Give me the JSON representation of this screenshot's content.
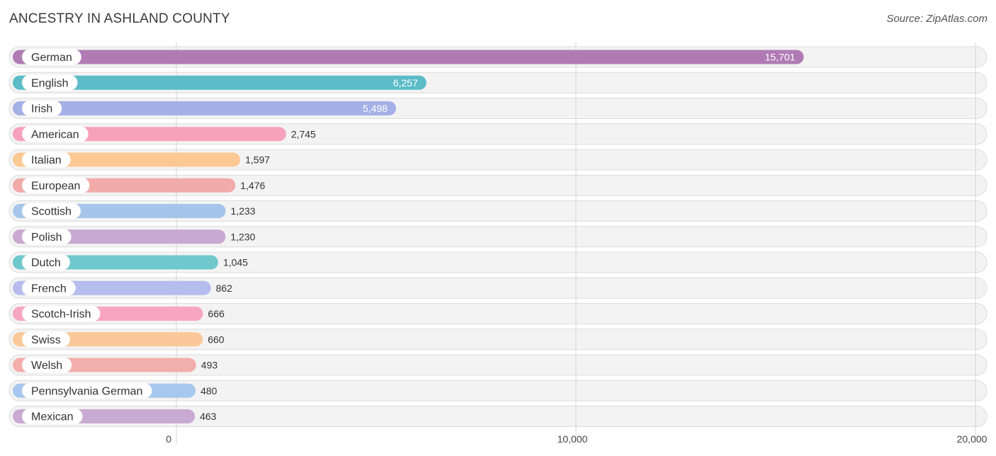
{
  "header": {
    "title": "ANCESTRY IN ASHLAND COUNTY",
    "source": "Source: ZipAtlas.com"
  },
  "chart_data": {
    "type": "bar",
    "orientation": "horizontal",
    "title": "ANCESTRY IN ASHLAND COUNTY",
    "categories": [
      "German",
      "English",
      "Irish",
      "American",
      "Italian",
      "European",
      "Scottish",
      "Polish",
      "Dutch",
      "French",
      "Scotch-Irish",
      "Swiss",
      "Welsh",
      "Pennsylvania German",
      "Mexican"
    ],
    "values": [
      15701,
      6257,
      5498,
      2745,
      1597,
      1476,
      1233,
      1230,
      1045,
      862,
      666,
      660,
      493,
      480,
      463
    ],
    "value_labels": [
      "15,701",
      "6,257",
      "5,498",
      "2,745",
      "1,597",
      "1,476",
      "1,233",
      "1,230",
      "1,045",
      "862",
      "666",
      "660",
      "493",
      "480",
      "463"
    ],
    "colors": [
      "#b07bb5",
      "#5bbcc8",
      "#a5b0e6",
      "#f7a1bd",
      "#fcc994",
      "#f1aba9",
      "#a5c6ea",
      "#c9a9d1",
      "#6fc8cc",
      "#b6bced",
      "#f7a6c2",
      "#fcc89a",
      "#f2aeab",
      "#a8c7ee",
      "#c9aad3"
    ],
    "xlim": [
      0,
      20000
    ],
    "xticks": [
      0,
      10000,
      20000
    ],
    "xtick_labels": [
      "0",
      "10,000",
      "20,000"
    ],
    "grid": true
  }
}
